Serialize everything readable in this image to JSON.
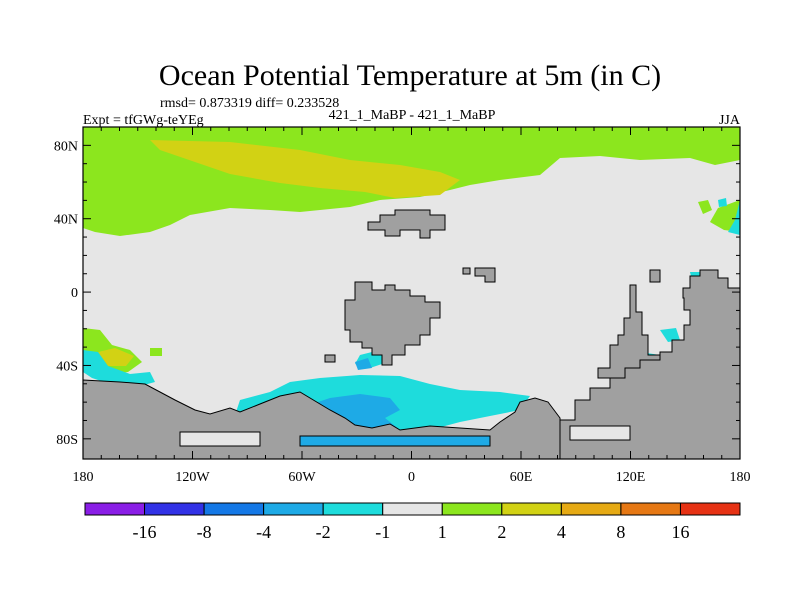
{
  "title": "Ocean Potential Temperature at 5m (in C)",
  "stats_text": "rmsd= 0.873319 diff= 0.233528",
  "left_label": "Expt = tfGWg-teYEg",
  "center_label": "421_1_MaBP - 421_1_MaBP",
  "right_label": "JJA",
  "lon_ticks": [
    {
      "lon": -180,
      "label": "180"
    },
    {
      "lon": -120,
      "label": "120W"
    },
    {
      "lon": -60,
      "label": "60W"
    },
    {
      "lon": 0,
      "label": "0"
    },
    {
      "lon": 60,
      "label": "60E"
    },
    {
      "lon": 120,
      "label": "120E"
    },
    {
      "lon": 180,
      "label": "180"
    }
  ],
  "lat_ticks": [
    {
      "lat": 80,
      "label": "80N"
    },
    {
      "lat": 40,
      "label": "40N"
    },
    {
      "lat": 0,
      "label": "0"
    },
    {
      "lat": -40,
      "label": "40S"
    },
    {
      "lat": -80,
      "label": "80S"
    }
  ],
  "colorbar": {
    "colors": [
      "#8a1ee6",
      "#3232e6",
      "#1478e6",
      "#1eaae6",
      "#1edcdc",
      "#e6e6e6",
      "#8ce61e",
      "#d2d214",
      "#e6aa14",
      "#e67814",
      "#e63214"
    ],
    "labels": [
      "-16",
      "-8",
      "-4",
      "-2",
      "-1",
      "1",
      "2",
      "4",
      "8",
      "16"
    ]
  },
  "colors": {
    "land": "#a0a0a0",
    "background": "#e6e6e6",
    "green": "#8ce61e",
    "olive": "#d2d214",
    "orange": "#e6aa14",
    "cyan": "#1edcdc",
    "lightblue": "#1eaae6"
  }
}
